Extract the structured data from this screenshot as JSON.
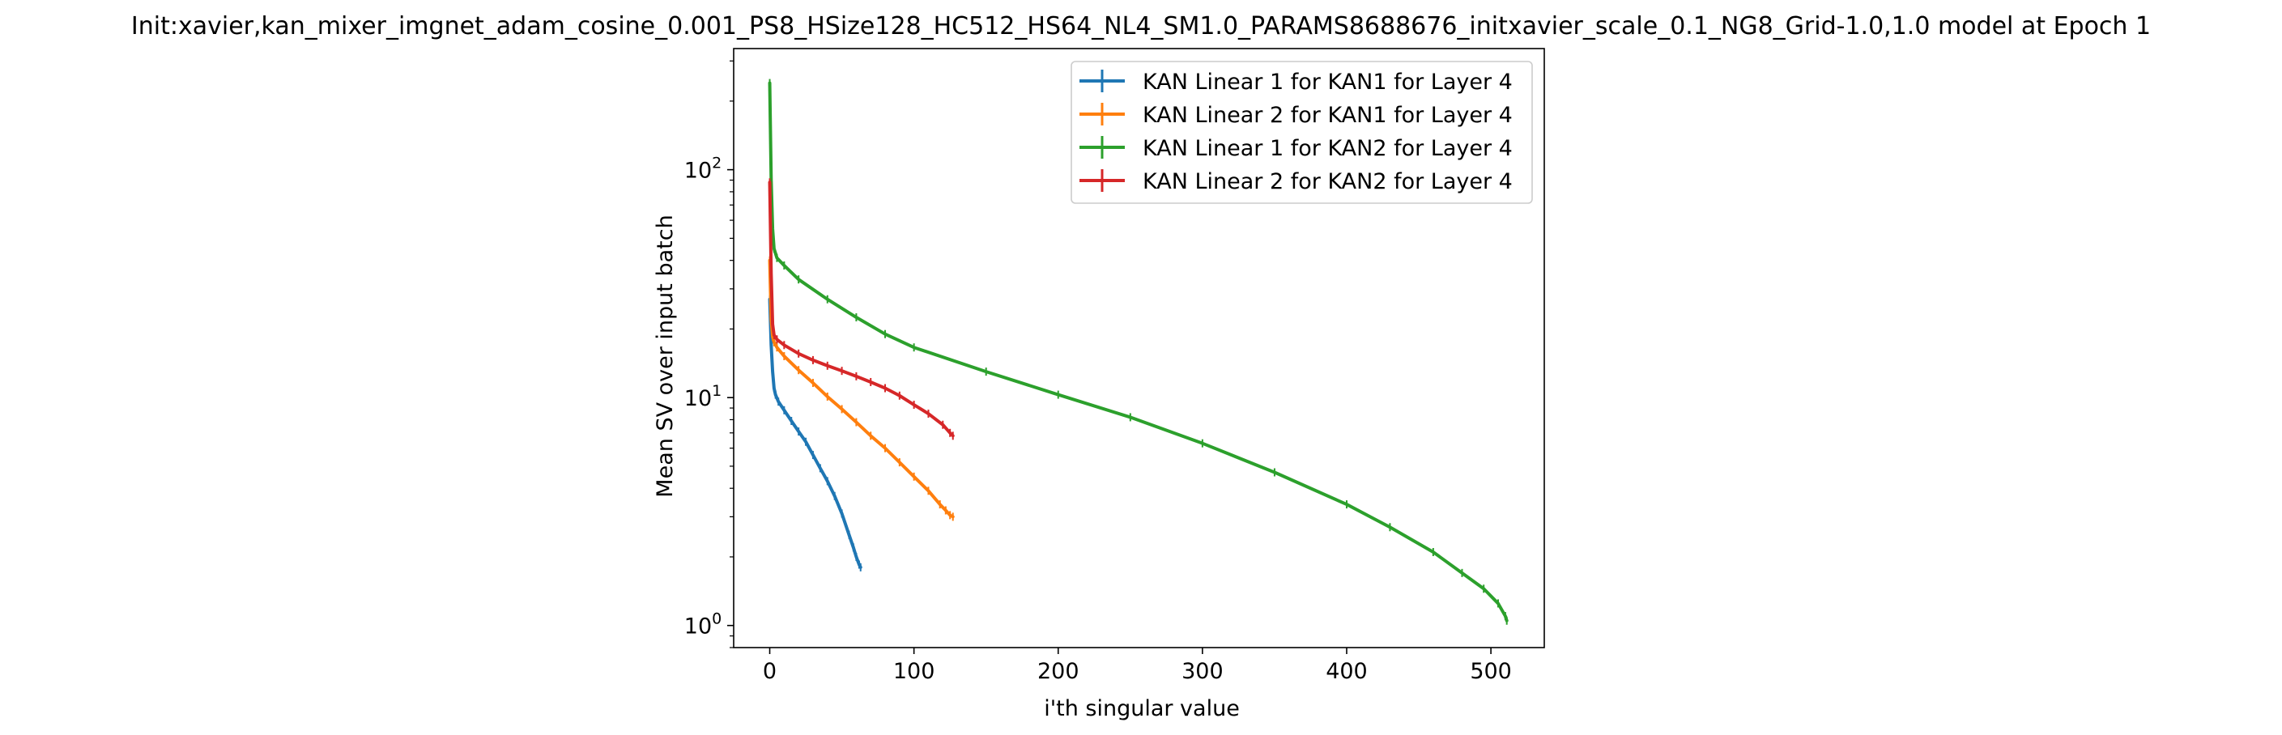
{
  "chart_data": {
    "type": "line",
    "title": "Init:xavier,kan_mixer_imgnet_adam_cosine_0.001_PS8_HSize128_HC512_HS64_NL4_SM1.0_PARAMS8688676_initxavier_scale_0.1_NG8_Grid-1.0,1.0 model at Epoch 1",
    "xlabel": "i'th singular value",
    "ylabel": "Mean SV over input batch",
    "xlim": [
      -25,
      537
    ],
    "ylim": [
      0.8,
      340
    ],
    "yscale": "log",
    "grid": false,
    "legend_position": "top-right",
    "xticks": [
      {
        "value": 0,
        "label": "0"
      },
      {
        "value": 100,
        "label": "100"
      },
      {
        "value": 200,
        "label": "200"
      },
      {
        "value": 300,
        "label": "300"
      },
      {
        "value": 400,
        "label": "400"
      },
      {
        "value": 500,
        "label": "500"
      }
    ],
    "yticks": [
      {
        "value": 1,
        "base": "10",
        "exp": "0"
      },
      {
        "value": 10,
        "base": "10",
        "exp": "1"
      },
      {
        "value": 100,
        "base": "10",
        "exp": "2"
      }
    ],
    "series": [
      {
        "name": "KAN Linear 1 for KAN1 for Layer 4",
        "color": "#1f77b4",
        "points": [
          [
            0,
            27
          ],
          [
            1,
            17
          ],
          [
            2,
            13
          ],
          [
            3,
            11
          ],
          [
            4,
            10.3
          ],
          [
            6,
            9.6
          ],
          [
            10,
            8.8
          ],
          [
            15,
            7.9
          ],
          [
            20,
            7.1
          ],
          [
            25,
            6.4
          ],
          [
            30,
            5.6
          ],
          [
            35,
            4.9
          ],
          [
            40,
            4.3
          ],
          [
            45,
            3.7
          ],
          [
            50,
            3.1
          ],
          [
            55,
            2.5
          ],
          [
            58,
            2.2
          ],
          [
            60,
            2.0
          ],
          [
            62,
            1.85
          ],
          [
            63,
            1.8
          ]
        ]
      },
      {
        "name": "KAN Linear 2 for KAN1 for Layer 4",
        "color": "#ff7f0e",
        "points": [
          [
            0,
            40
          ],
          [
            1,
            22
          ],
          [
            2,
            18.5
          ],
          [
            3,
            17.5
          ],
          [
            5,
            16.6
          ],
          [
            10,
            15.2
          ],
          [
            20,
            13.2
          ],
          [
            30,
            11.6
          ],
          [
            40,
            10.1
          ],
          [
            50,
            8.9
          ],
          [
            60,
            7.8
          ],
          [
            70,
            6.8
          ],
          [
            80,
            6.0
          ],
          [
            90,
            5.2
          ],
          [
            100,
            4.5
          ],
          [
            110,
            3.9
          ],
          [
            118,
            3.4
          ],
          [
            122,
            3.2
          ],
          [
            125,
            3.05
          ],
          [
            127,
            3.0
          ]
        ]
      },
      {
        "name": "KAN Linear 1 for KAN2 for Layer 4",
        "color": "#2ca02c",
        "points": [
          [
            0,
            240
          ],
          [
            1,
            90
          ],
          [
            2,
            55
          ],
          [
            3,
            45
          ],
          [
            5,
            41
          ],
          [
            10,
            38
          ],
          [
            20,
            33
          ],
          [
            40,
            27
          ],
          [
            60,
            22.5
          ],
          [
            80,
            19
          ],
          [
            100,
            16.6
          ],
          [
            150,
            13
          ],
          [
            200,
            10.3
          ],
          [
            250,
            8.2
          ],
          [
            300,
            6.3
          ],
          [
            350,
            4.7
          ],
          [
            400,
            3.4
          ],
          [
            430,
            2.7
          ],
          [
            460,
            2.1
          ],
          [
            480,
            1.7
          ],
          [
            495,
            1.45
          ],
          [
            505,
            1.25
          ],
          [
            510,
            1.1
          ],
          [
            511,
            1.05
          ]
        ]
      },
      {
        "name": "KAN Linear 2 for KAN2 for Layer 4",
        "color": "#d62728",
        "points": [
          [
            0,
            88
          ],
          [
            1,
            35
          ],
          [
            2,
            21
          ],
          [
            3,
            18.8
          ],
          [
            5,
            18
          ],
          [
            10,
            17
          ],
          [
            20,
            15.6
          ],
          [
            30,
            14.6
          ],
          [
            40,
            13.8
          ],
          [
            50,
            13.1
          ],
          [
            60,
            12.4
          ],
          [
            70,
            11.7
          ],
          [
            80,
            11.0
          ],
          [
            90,
            10.2
          ],
          [
            100,
            9.3
          ],
          [
            110,
            8.5
          ],
          [
            120,
            7.6
          ],
          [
            125,
            7.0
          ],
          [
            127,
            6.8
          ]
        ]
      }
    ]
  }
}
